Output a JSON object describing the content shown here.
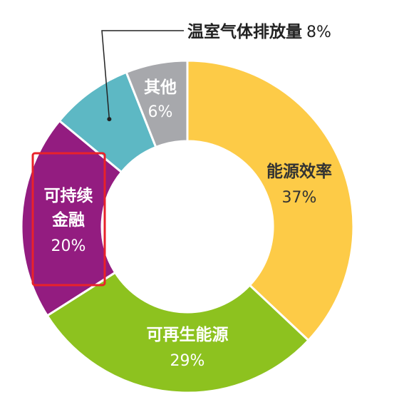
{
  "chart_data": {
    "type": "pie",
    "donut": true,
    "title": "",
    "slices": [
      {
        "name": "能源效率",
        "value": 37,
        "value_label": "37%",
        "color": "#FDCB47",
        "name_color": "#333333",
        "pct_color": "#333333"
      },
      {
        "name": "可再生能源",
        "value": 29,
        "value_label": "29%",
        "color": "#8DC21F",
        "name_color": "#ffffff",
        "pct_color": "#ffffff"
      },
      {
        "name": "可持续金融",
        "name_lines": [
          "可持续",
          "金融"
        ],
        "value": 20,
        "value_label": "20%",
        "color": "#931C80",
        "name_color": "#ffffff",
        "pct_color": "#ffffff",
        "highlighted": true
      },
      {
        "name": "温室气体排放量",
        "value": 8,
        "value_label": "8%",
        "color": "#5DB8C4",
        "name_color": "#222222",
        "pct_color": "#222222",
        "callout": true
      },
      {
        "name": "其他",
        "value": 6,
        "value_label": "6%",
        "color": "#A7A8AC",
        "name_color": "#ffffff",
        "pct_color": "#ffffff"
      }
    ],
    "highlight_color": "#E8222A"
  }
}
